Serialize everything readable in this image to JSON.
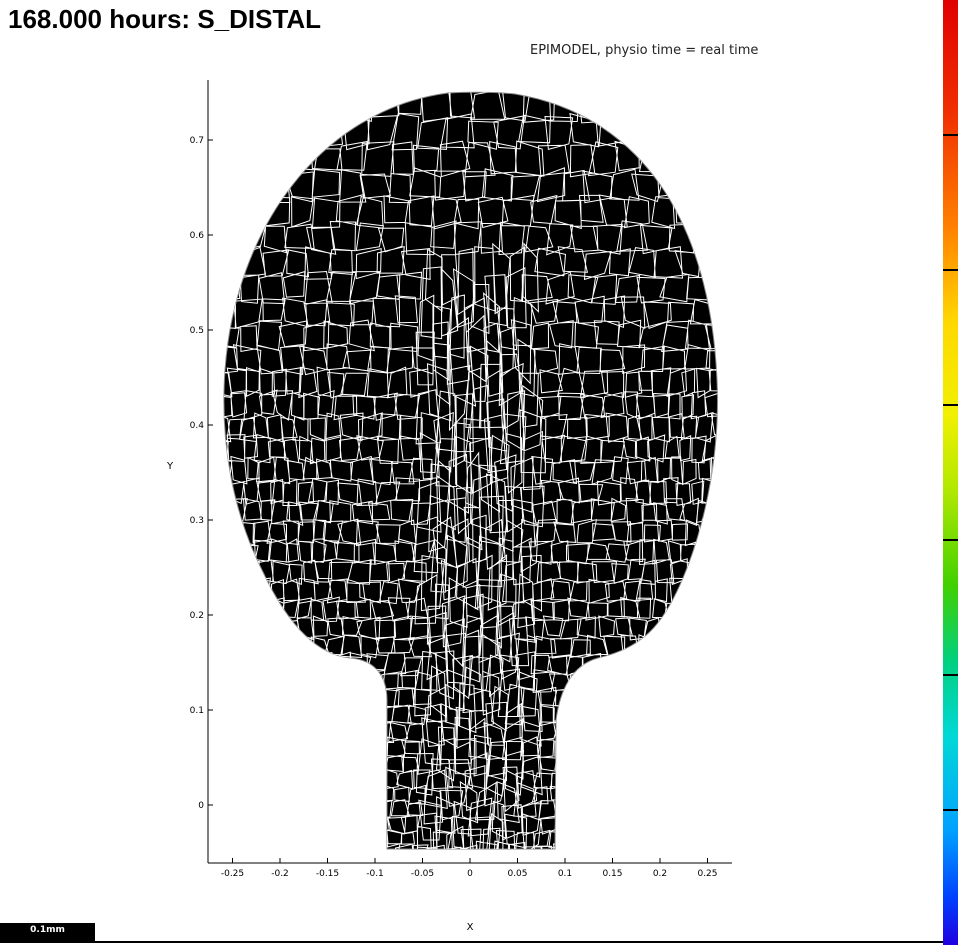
{
  "title": "168.000 hours: S_DISTAL",
  "subtitle": "EPIMODEL, physio time = real time",
  "scale_label": "0.1mm",
  "colors": {
    "tissue": "#000000",
    "cell_wall": "#ffffff",
    "axis": "#000000"
  },
  "chart_data": {
    "type": "scatter",
    "xlabel": "X",
    "ylabel": "Y",
    "x_ticks": [
      "-0.25",
      "-0.2",
      "-0.15",
      "-0.1",
      "-0.05",
      "0",
      "0.05",
      "0.1",
      "0.15",
      "0.2",
      "0.25"
    ],
    "y_ticks": [
      "0",
      "0.1",
      "0.2",
      "0.3",
      "0.4",
      "0.5",
      "0.6",
      "0.7"
    ],
    "xlim": [
      -0.275,
      0.275
    ],
    "ylim": [
      -0.06,
      0.76
    ],
    "grid": false
  }
}
